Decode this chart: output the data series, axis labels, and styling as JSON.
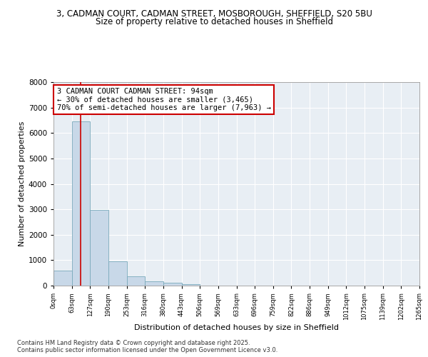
{
  "title_line1": "3, CADMAN COURT, CADMAN STREET, MOSBOROUGH, SHEFFIELD, S20 5BU",
  "title_line2": "Size of property relative to detached houses in Sheffield",
  "xlabel": "Distribution of detached houses by size in Sheffield",
  "ylabel": "Number of detached properties",
  "bar_color": "#c8d8e8",
  "bar_edge_color": "#7aaabb",
  "bin_labels": [
    "0sqm",
    "63sqm",
    "127sqm",
    "190sqm",
    "253sqm",
    "316sqm",
    "380sqm",
    "443sqm",
    "506sqm",
    "569sqm",
    "633sqm",
    "696sqm",
    "759sqm",
    "822sqm",
    "886sqm",
    "949sqm",
    "1012sqm",
    "1075sqm",
    "1139sqm",
    "1202sqm",
    "1265sqm"
  ],
  "bar_heights": [
    580,
    6450,
    2980,
    960,
    360,
    165,
    100,
    70,
    0,
    0,
    0,
    0,
    0,
    0,
    0,
    0,
    0,
    0,
    0,
    0
  ],
  "ylim": [
    0,
    8000
  ],
  "yticks": [
    0,
    1000,
    2000,
    3000,
    4000,
    5000,
    6000,
    7000,
    8000
  ],
  "property_line_x": 1.47,
  "property_line_color": "#cc0000",
  "annotation_text": "3 CADMAN COURT CADMAN STREET: 94sqm\n← 30% of detached houses are smaller (3,465)\n70% of semi-detached houses are larger (7,963) →",
  "annotation_box_color": "#ffffff",
  "annotation_box_edge": "#cc0000",
  "footer_text": "Contains HM Land Registry data © Crown copyright and database right 2025.\nContains public sector information licensed under the Open Government Licence v3.0.",
  "background_color": "#e8eef4",
  "grid_color": "#ffffff",
  "fig_bg_color": "#ffffff"
}
